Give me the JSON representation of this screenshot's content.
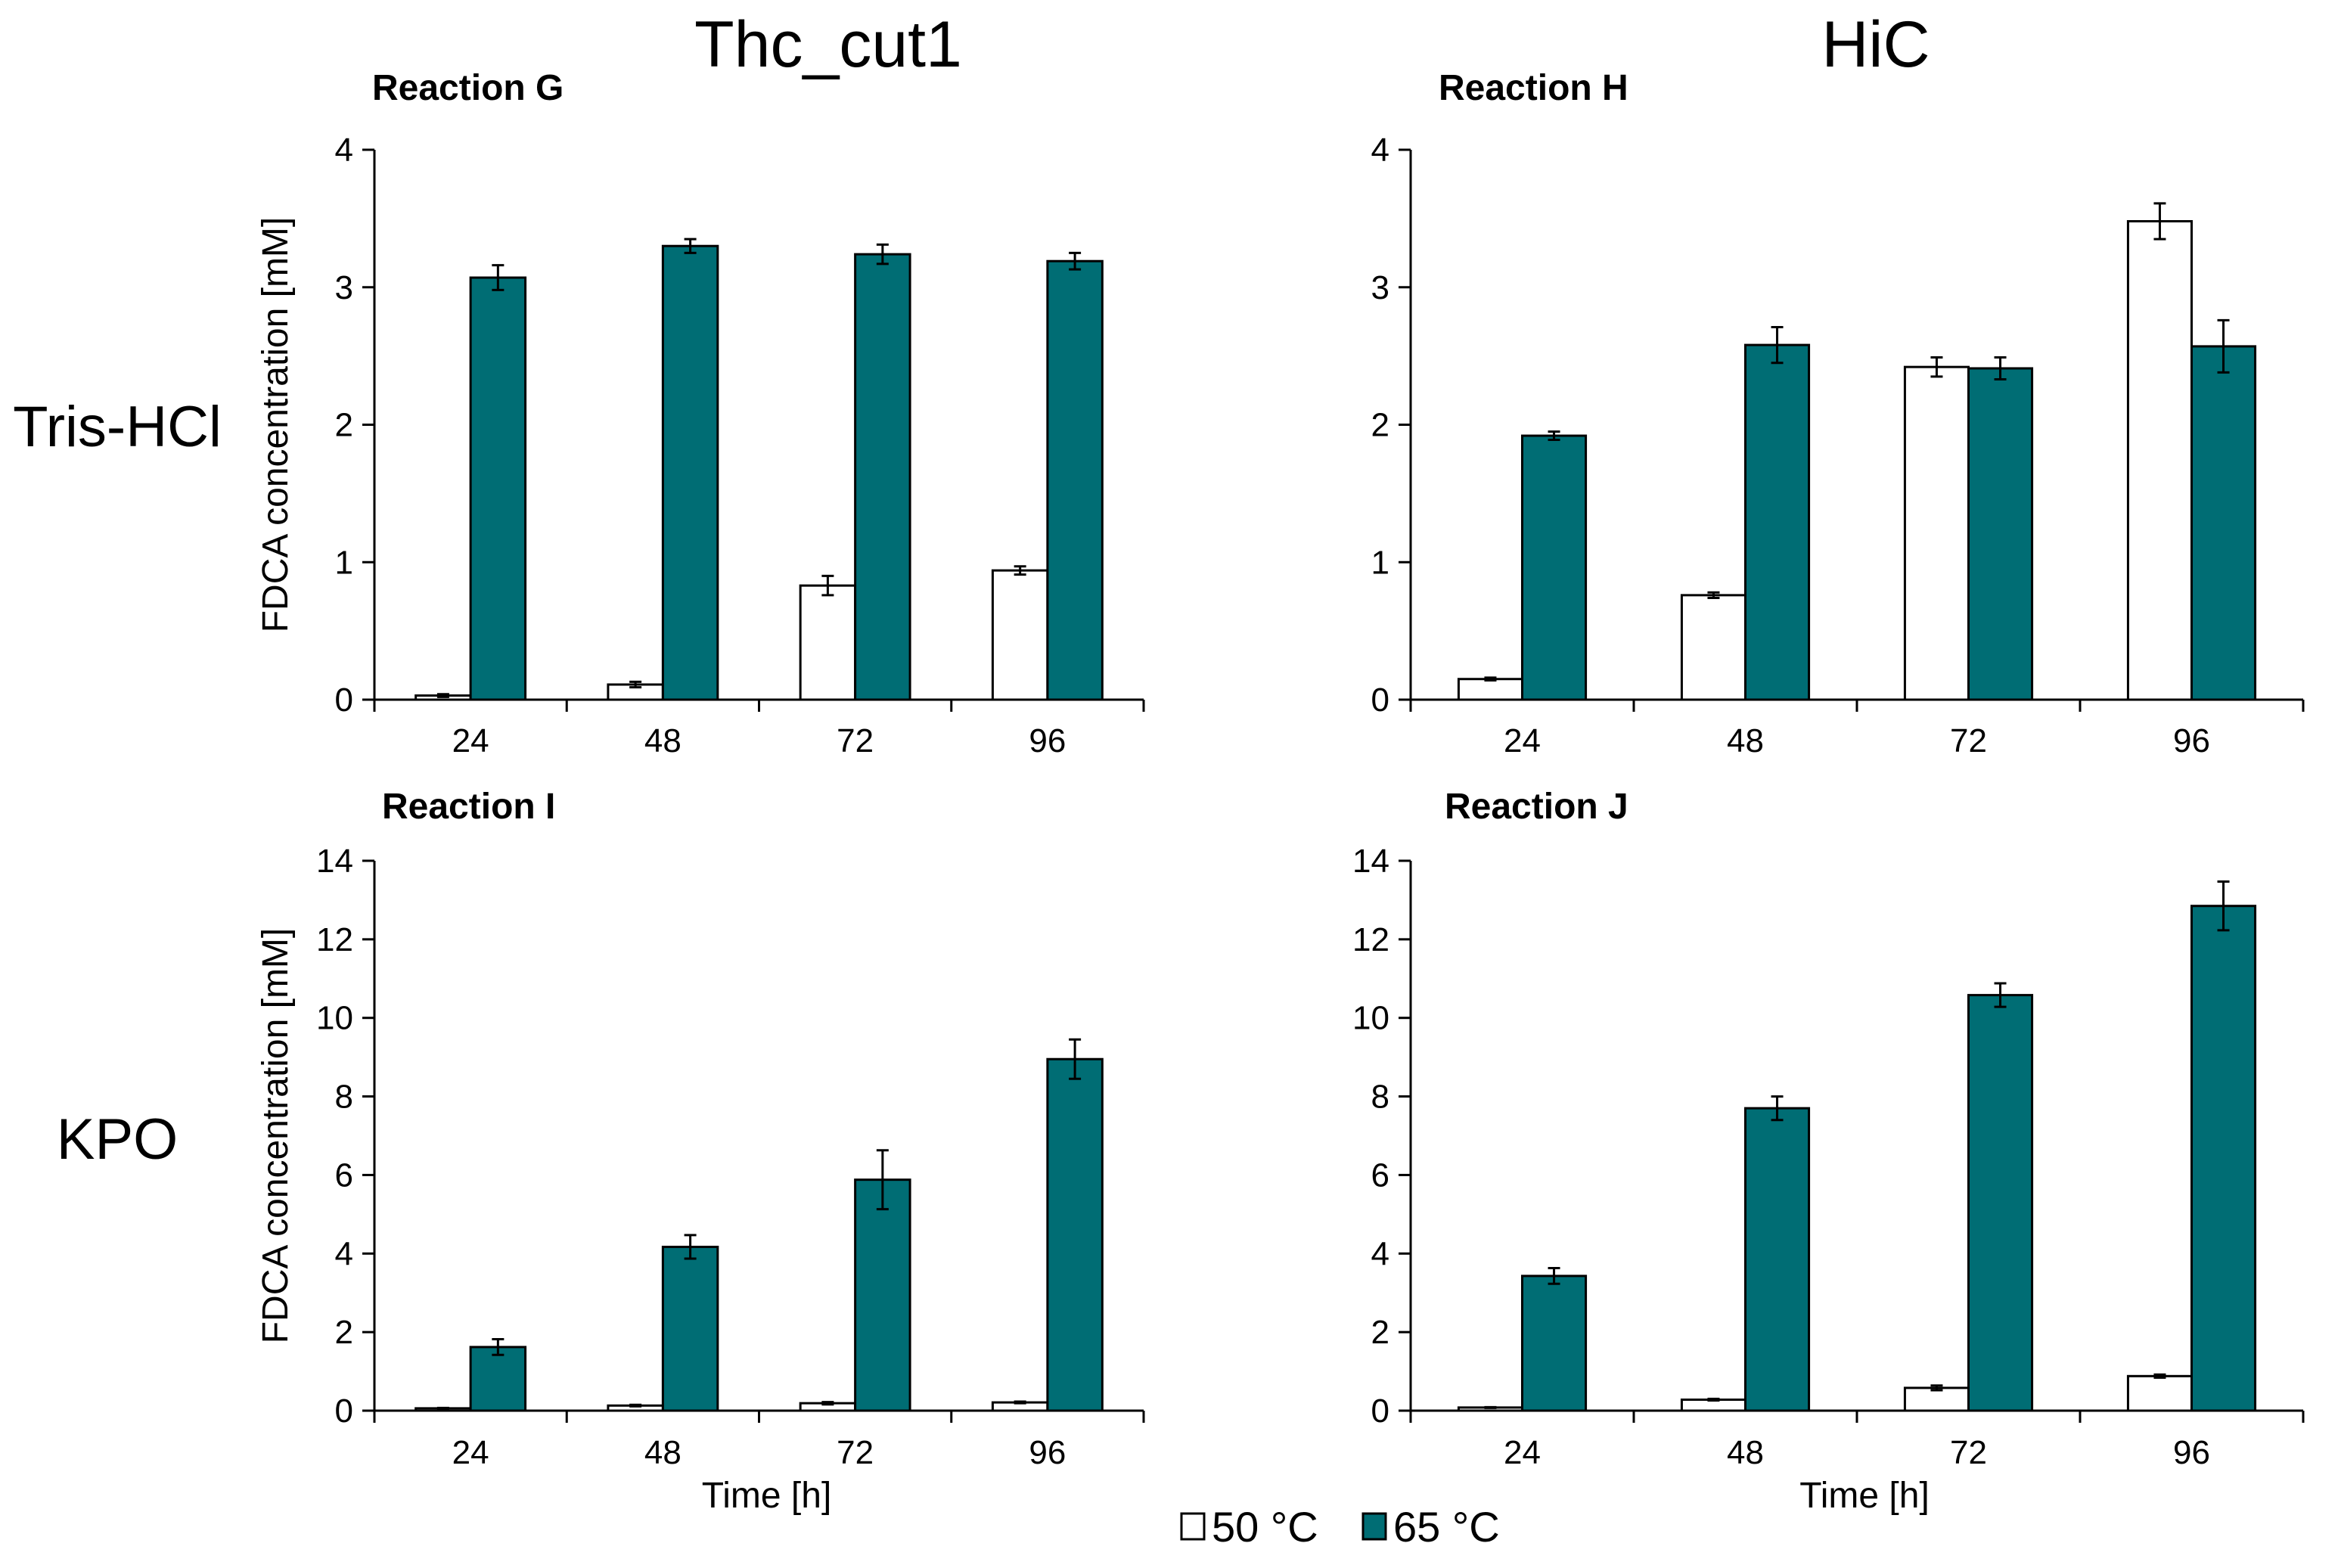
{
  "figure": {
    "column_headers": [
      "Thc_cut1",
      "HiC"
    ],
    "row_headers": [
      "Tris-HCl",
      "KPO"
    ],
    "x_axis_title": "Time [h]",
    "y_axis_title": "FDCA concentration [mM]",
    "legend": [
      {
        "label": "50 °C",
        "color": "#ffffff"
      },
      {
        "label": "65 °C",
        "color": "#006d74"
      }
    ]
  },
  "chart_data": [
    {
      "type": "bar",
      "title": "Reaction G",
      "column": "Thc_cut1",
      "row": "Tris-HCl",
      "categories": [
        "24",
        "48",
        "72",
        "96"
      ],
      "xlabel": "",
      "ylabel": "FDCA concentration [mM]",
      "ylim": [
        0,
        4
      ],
      "yticks": [
        0,
        1,
        2,
        3,
        4
      ],
      "series": [
        {
          "name": "50 °C",
          "color": "#ffffff",
          "values": [
            0.03,
            0.11,
            0.83,
            0.94
          ],
          "errors": [
            0.01,
            0.02,
            0.07,
            0.03
          ]
        },
        {
          "name": "65 °C",
          "color": "#006d74",
          "values": [
            3.07,
            3.3,
            3.24,
            3.19
          ],
          "errors": [
            0.09,
            0.05,
            0.07,
            0.06
          ]
        }
      ]
    },
    {
      "type": "bar",
      "title": "Reaction H",
      "column": "HiC",
      "row": "Tris-HCl",
      "categories": [
        "24",
        "48",
        "72",
        "96"
      ],
      "xlabel": "",
      "ylabel": "",
      "ylim": [
        0,
        4
      ],
      "yticks": [
        0,
        1,
        2,
        3,
        4
      ],
      "series": [
        {
          "name": "50 °C",
          "color": "#ffffff",
          "values": [
            0.15,
            0.76,
            2.42,
            3.48
          ],
          "errors": [
            0.01,
            0.02,
            0.07,
            0.13
          ]
        },
        {
          "name": "65 °C",
          "color": "#006d74",
          "values": [
            1.92,
            2.58,
            2.41,
            2.57
          ],
          "errors": [
            0.03,
            0.13,
            0.08,
            0.19
          ]
        }
      ]
    },
    {
      "type": "bar",
      "title": "Reaction I",
      "column": "Thc_cut1",
      "row": "KPO",
      "categories": [
        "24",
        "48",
        "72",
        "96"
      ],
      "xlabel": "Time [h]",
      "ylabel": "FDCA concentration [mM]",
      "ylim": [
        0,
        14
      ],
      "yticks": [
        0,
        2,
        4,
        6,
        8,
        10,
        12,
        14
      ],
      "series": [
        {
          "name": "50 °C",
          "color": "#ffffff",
          "values": [
            0.06,
            0.13,
            0.19,
            0.21
          ],
          "errors": [
            0.01,
            0.02,
            0.03,
            0.02
          ]
        },
        {
          "name": "65 °C",
          "color": "#006d74",
          "values": [
            1.62,
            4.17,
            5.88,
            8.95
          ],
          "errors": [
            0.2,
            0.3,
            0.75,
            0.5
          ]
        }
      ]
    },
    {
      "type": "bar",
      "title": "Reaction J",
      "column": "HiC",
      "row": "KPO",
      "categories": [
        "24",
        "48",
        "72",
        "96"
      ],
      "xlabel": "Time [h]",
      "ylabel": "",
      "ylim": [
        0,
        14
      ],
      "yticks": [
        0,
        2,
        4,
        6,
        8,
        10,
        12,
        14
      ],
      "series": [
        {
          "name": "50 °C",
          "color": "#ffffff",
          "values": [
            0.08,
            0.28,
            0.58,
            0.88
          ],
          "errors": [
            0.01,
            0.02,
            0.06,
            0.04
          ]
        },
        {
          "name": "65 °C",
          "color": "#006d74",
          "values": [
            3.43,
            7.7,
            10.58,
            12.85
          ],
          "errors": [
            0.2,
            0.3,
            0.3,
            0.62
          ]
        }
      ]
    }
  ]
}
